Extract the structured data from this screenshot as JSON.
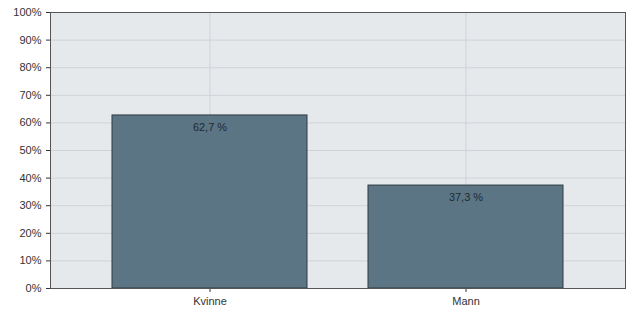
{
  "chart_data": {
    "type": "bar",
    "categories": [
      "Kvinne",
      "Mann"
    ],
    "values": [
      62.7,
      37.3
    ],
    "value_labels": [
      "62,7 %",
      "37,3 %"
    ],
    "color": "#5b7585",
    "ylim": [
      0,
      100
    ],
    "yticks": [
      {
        "value": 0,
        "label": "0%"
      },
      {
        "value": 10,
        "label": "10%"
      },
      {
        "value": 20,
        "label": "20%"
      },
      {
        "value": 30,
        "label": "30%"
      },
      {
        "value": 40,
        "label": "40%"
      },
      {
        "value": 50,
        "label": "50%"
      },
      {
        "value": 60,
        "label": "60%"
      },
      {
        "value": 70,
        "label": "70%"
      },
      {
        "value": 80,
        "label": "80%"
      },
      {
        "value": 90,
        "label": "90%"
      },
      {
        "value": 100,
        "label": "100%"
      }
    ],
    "grid": true,
    "data_labels": true
  }
}
